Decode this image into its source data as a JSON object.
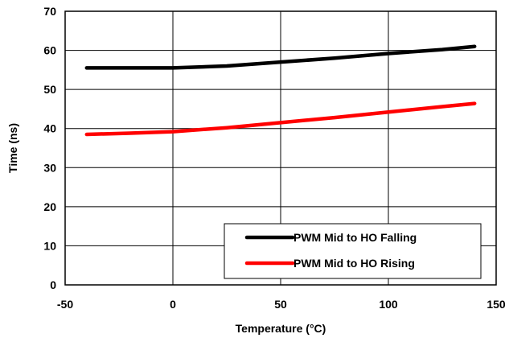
{
  "chart_data": {
    "type": "line",
    "title": "",
    "xlabel": "Temperature (°C)",
    "ylabel": "Time (ns)",
    "xlim": [
      -50,
      150
    ],
    "ylim": [
      0,
      70
    ],
    "xticks": [
      "-50",
      "0",
      "50",
      "100",
      "150"
    ],
    "yticks": [
      "0",
      "10",
      "20",
      "30",
      "40",
      "50",
      "60",
      "70"
    ],
    "grid": true,
    "legend_position": "bottom-right",
    "series": [
      {
        "name": "PWM Mid to HO Falling",
        "color": "#000000",
        "x": [
          -40,
          -20,
          0,
          25,
          50,
          75,
          100,
          125,
          140
        ],
        "y": [
          55.5,
          55.5,
          55.5,
          56.0,
          57.0,
          58.0,
          59.2,
          60.2,
          61.0
        ]
      },
      {
        "name": "PWM Mid to HO Rising",
        "color": "#ff0000",
        "x": [
          -40,
          -20,
          0,
          25,
          50,
          75,
          100,
          125,
          140
        ],
        "y": [
          38.5,
          38.8,
          39.2,
          40.2,
          41.5,
          42.8,
          44.2,
          45.6,
          46.4
        ]
      }
    ]
  }
}
